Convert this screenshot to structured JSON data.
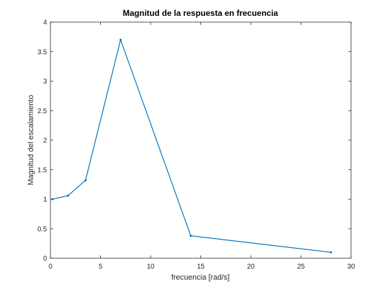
{
  "chart_data": {
    "type": "line",
    "title": "Magnitud de la respuesta en frecuencia",
    "xlabel": "frecuencia [rad/s]",
    "ylabel": "Magnitud del escalamiento",
    "xlim": [
      0,
      30
    ],
    "ylim": [
      0,
      4
    ],
    "xticks": [
      0,
      5,
      10,
      15,
      20,
      25,
      30
    ],
    "yticks": [
      0,
      0.5,
      1,
      1.5,
      2,
      2.5,
      3,
      3.5,
      4
    ],
    "xtick_labels": [
      "0",
      "5",
      "10",
      "15",
      "20",
      "25",
      "30"
    ],
    "ytick_labels": [
      "0",
      "0.5",
      "1",
      "1.5",
      "2",
      "2.5",
      "3",
      "3.5",
      "4"
    ],
    "grid": false,
    "box": true,
    "line_color": "#0072bd",
    "series": [
      {
        "x": [
          0.2,
          1.75,
          3.5,
          7.0,
          14.0,
          28.0
        ],
        "y": [
          1.0,
          1.06,
          1.32,
          3.7,
          0.38,
          0.1
        ]
      }
    ]
  }
}
